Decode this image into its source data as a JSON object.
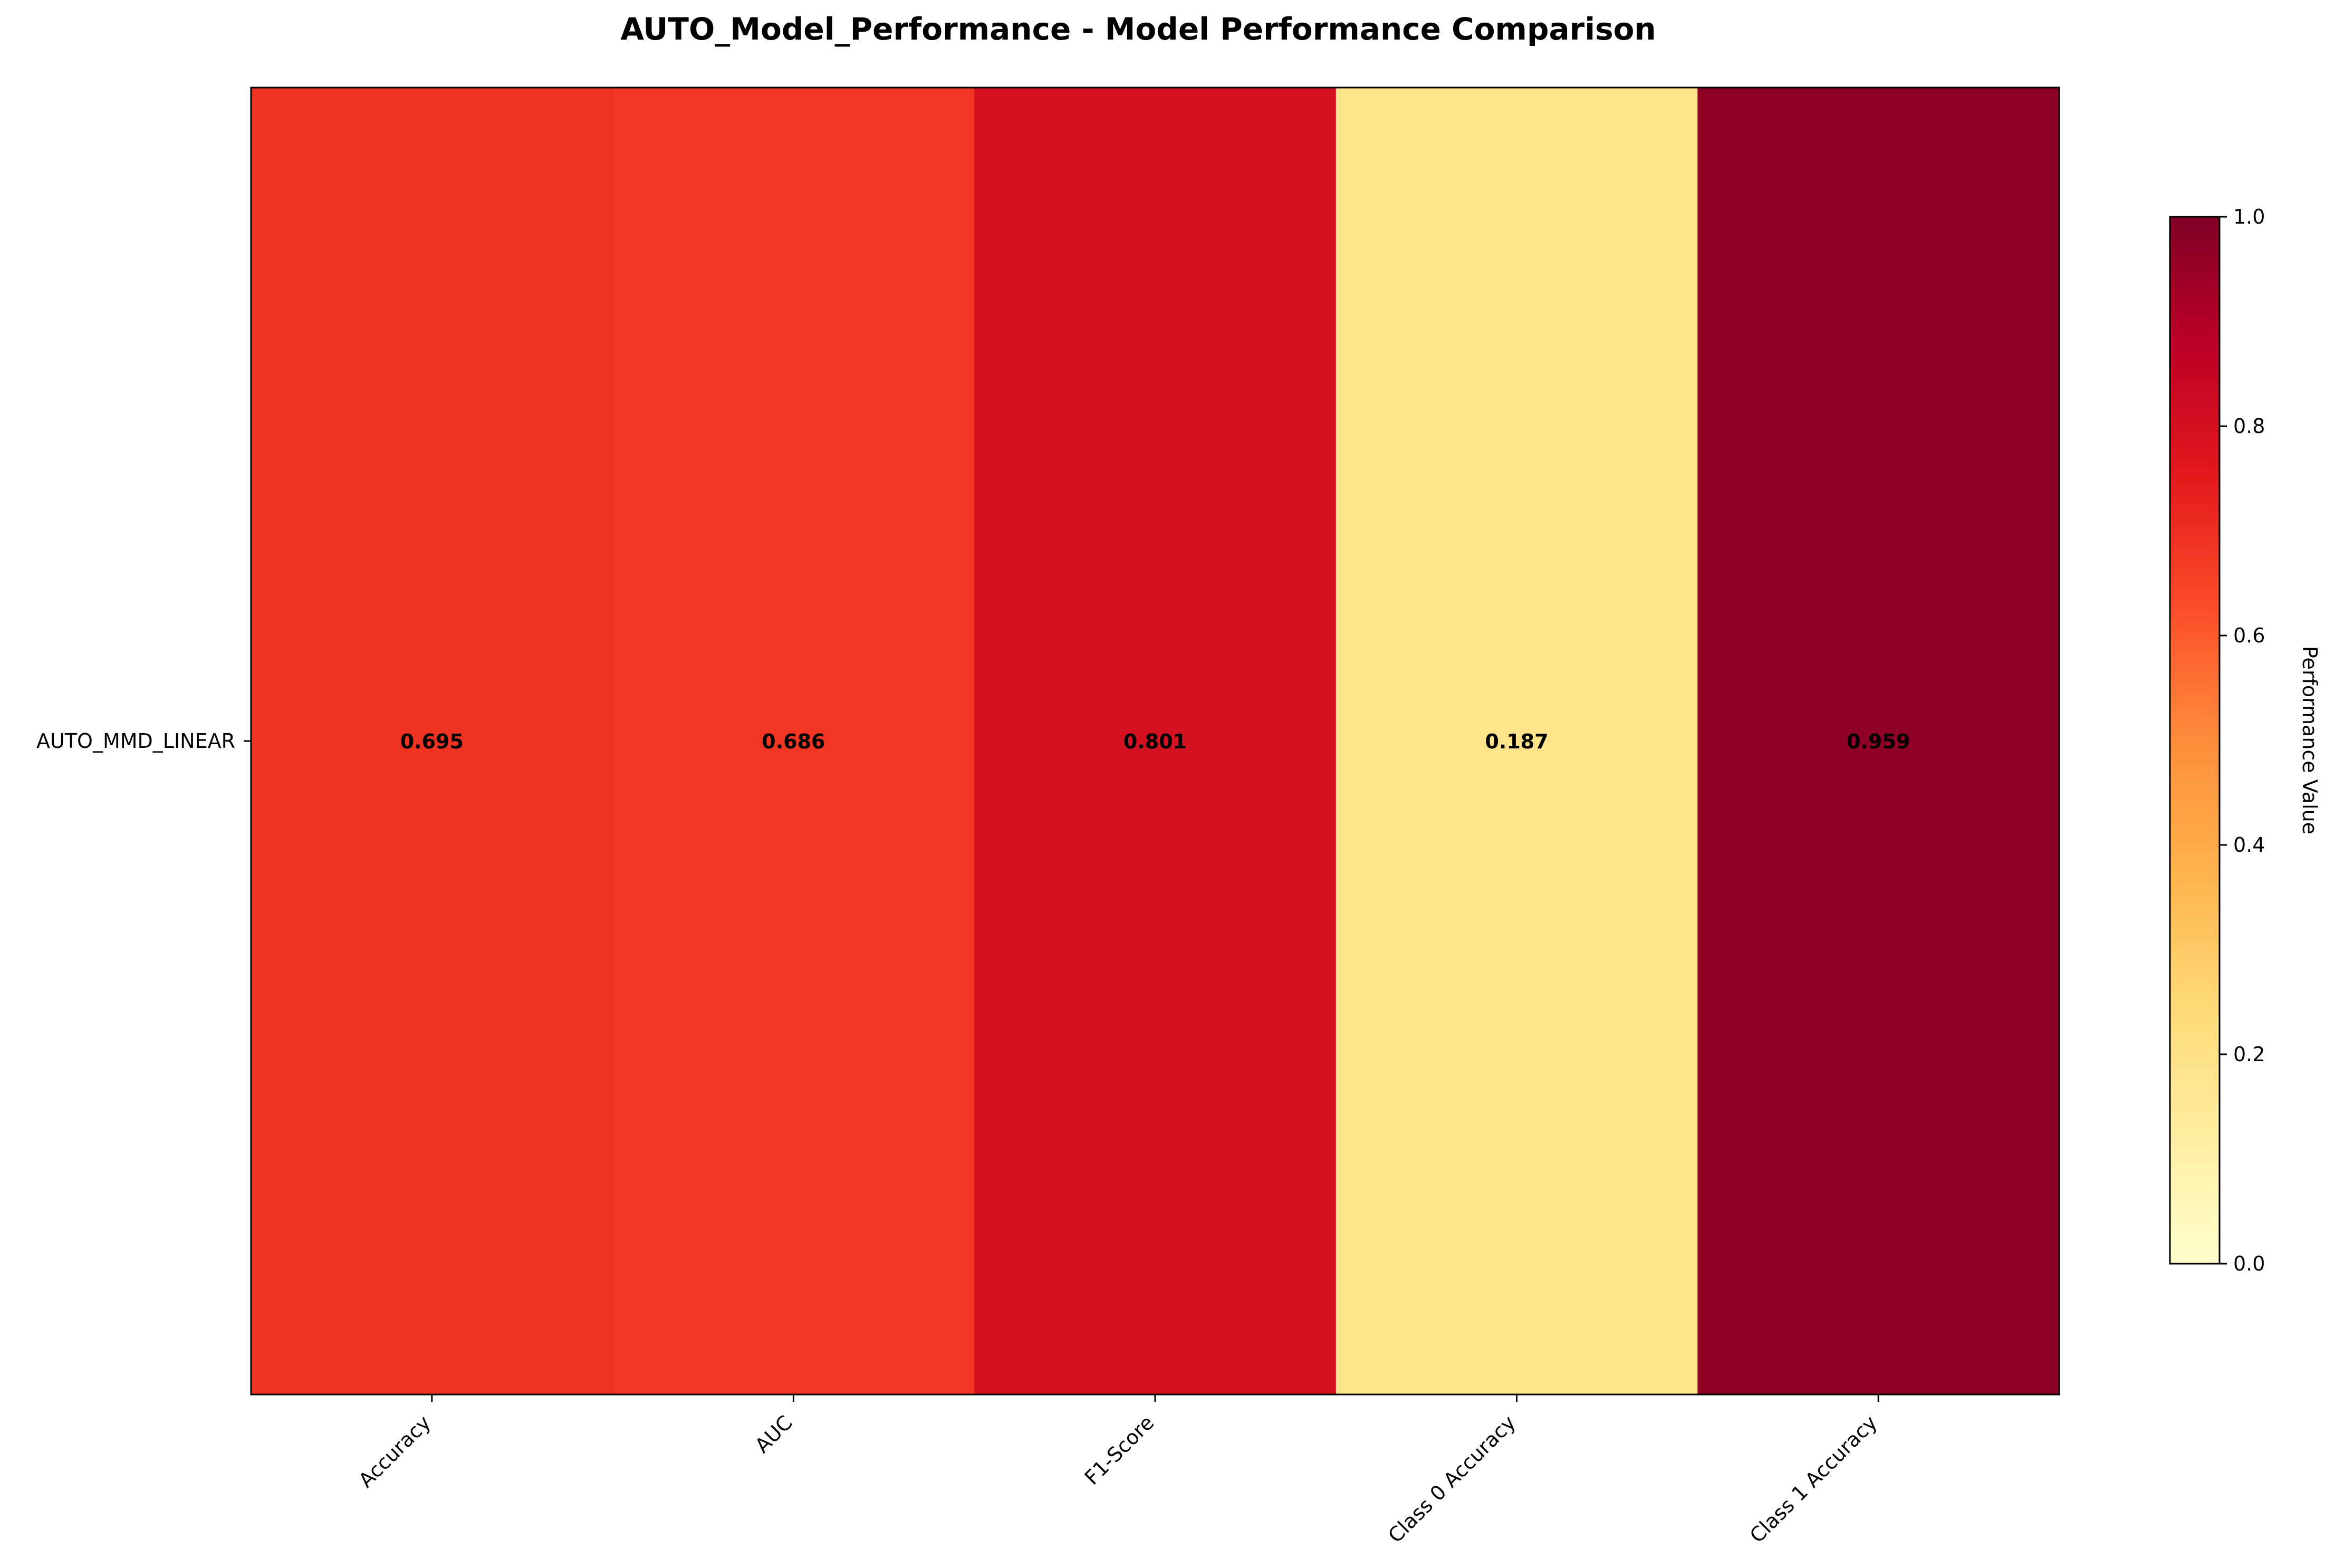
{
  "chart_data": {
    "type": "heatmap",
    "title": "AUTO_Model_Performance - Model Performance Comparison",
    "rows": [
      "AUTO_MMD_LINEAR"
    ],
    "columns": [
      "Accuracy",
      "AUC",
      "F1-Score",
      "Class 0 Accuracy",
      "Class 1 Accuracy"
    ],
    "values": [
      [
        0.695,
        0.686,
        0.801,
        0.187,
        0.959
      ]
    ],
    "value_labels": [
      [
        "0.695",
        "0.686",
        "0.801",
        "0.187",
        "0.959"
      ]
    ],
    "colormap": "YlOrRd",
    "cell_colors": [
      "#ef3323",
      "#f13624",
      "#d31121",
      "#fee38b",
      "#8f0026"
    ],
    "colorbar": {
      "label": "Performance Value",
      "range": [
        0.0,
        1.0
      ],
      "ticks": [
        0.0,
        0.2,
        0.4,
        0.6,
        0.8,
        1.0
      ],
      "tick_labels": [
        "0.0",
        "0.2",
        "0.4",
        "0.6",
        "0.8",
        "1.0"
      ],
      "stops": [
        "#ffffcc",
        "#ffeda0",
        "#fed976",
        "#feb24c",
        "#fd8d3c",
        "#fc4e2a",
        "#e31a1c",
        "#bd0026",
        "#800026"
      ]
    },
    "grid": false,
    "legend": "none"
  }
}
